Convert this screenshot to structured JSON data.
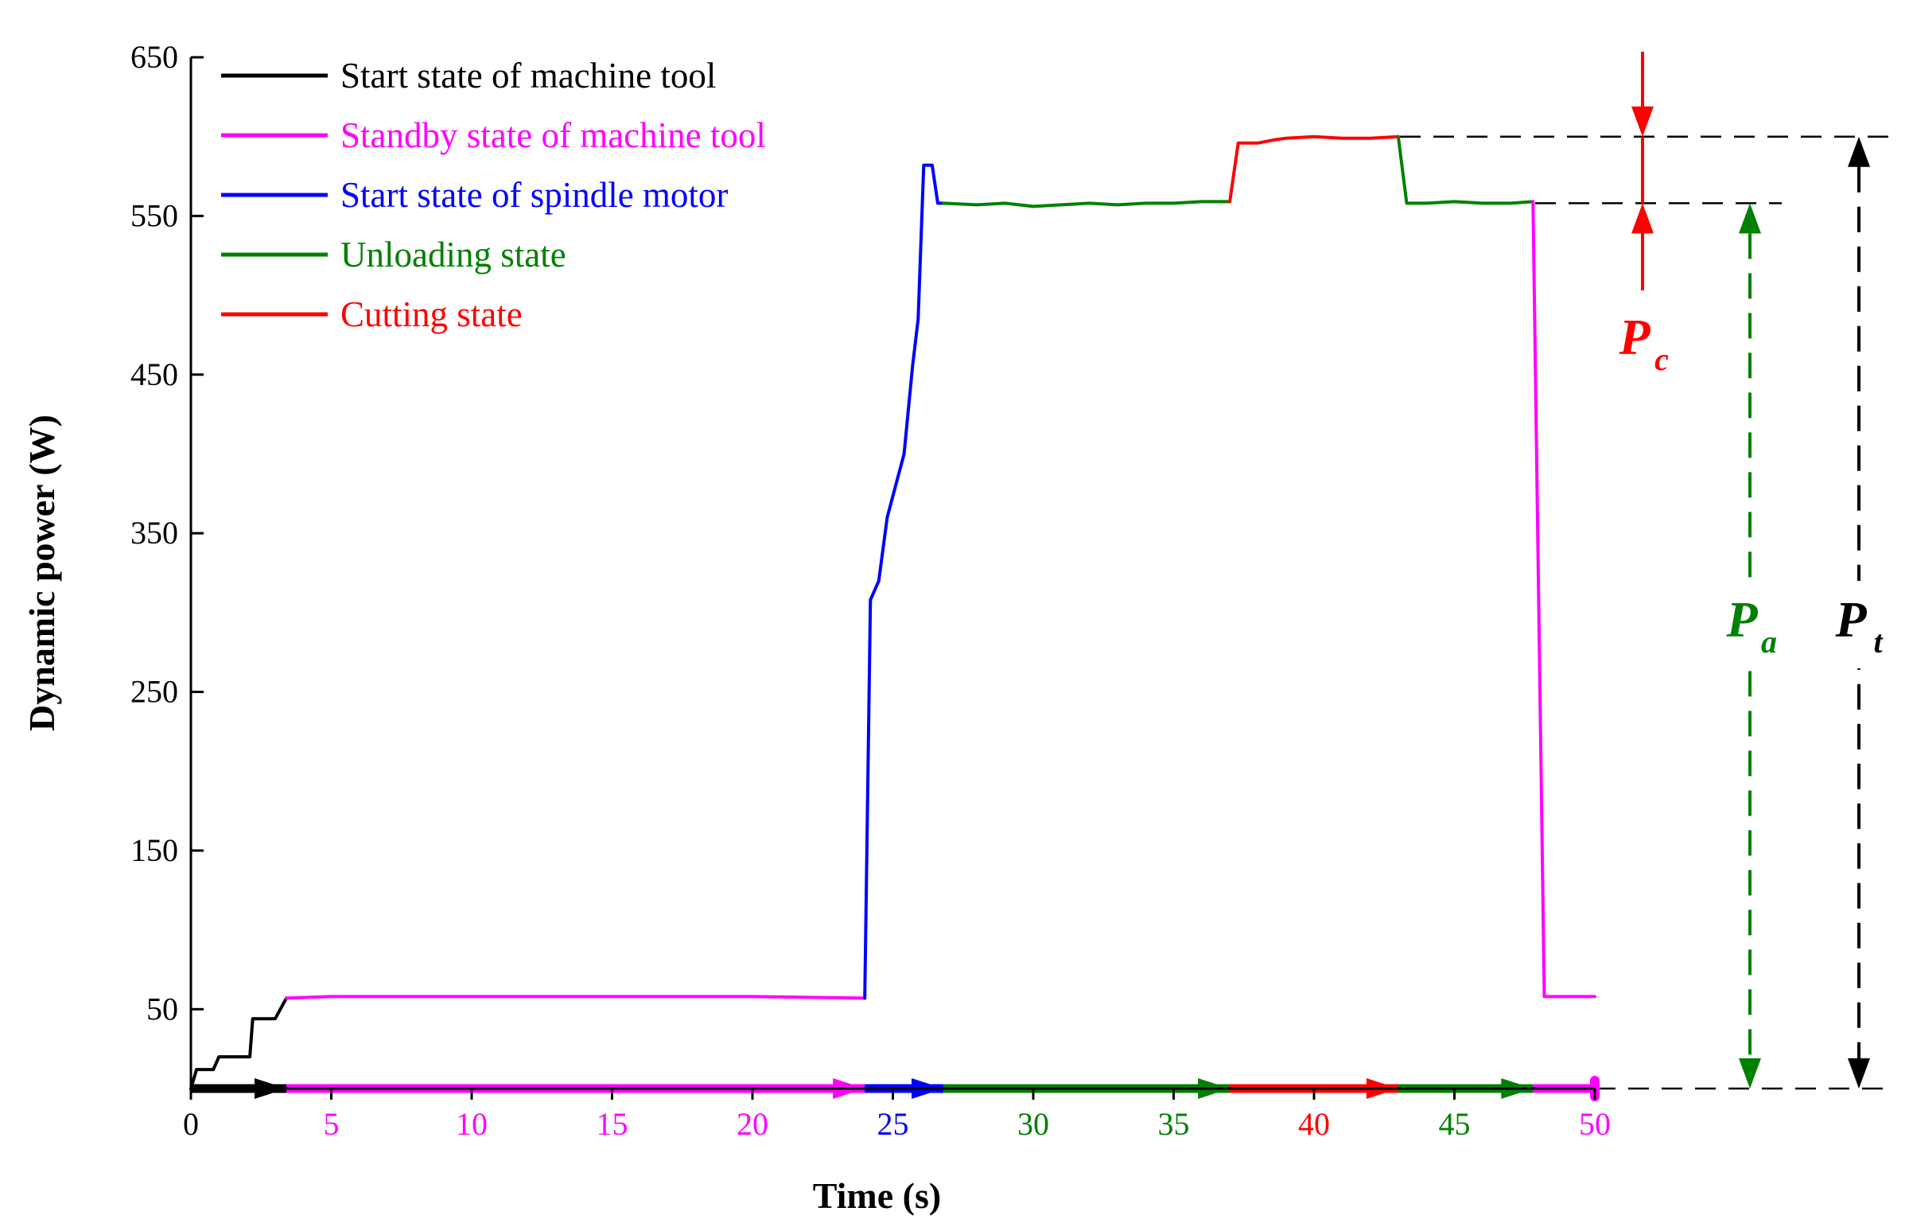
{
  "chart_data": {
    "type": "line",
    "title": "",
    "xlabel": "Time (s)",
    "ylabel": "Dynamic power (W)",
    "xlim": [
      0,
      50
    ],
    "ylim": [
      0,
      650
    ],
    "x_ticks": [
      {
        "label": "0",
        "value": 0,
        "color": "#000000"
      },
      {
        "label": "5",
        "value": 5,
        "color": "#ff00ff"
      },
      {
        "label": "10",
        "value": 10,
        "color": "#ff00ff"
      },
      {
        "label": "15",
        "value": 15,
        "color": "#ff00ff"
      },
      {
        "label": "20",
        "value": 20,
        "color": "#ff00ff"
      },
      {
        "label": "25",
        "value": 25,
        "color": "#0000ff"
      },
      {
        "label": "30",
        "value": 30,
        "color": "#008000"
      },
      {
        "label": "35",
        "value": 35,
        "color": "#008000"
      },
      {
        "label": "40",
        "value": 40,
        "color": "#ff0000"
      },
      {
        "label": "45",
        "value": 45,
        "color": "#008000"
      },
      {
        "label": "50",
        "value": 50,
        "color": "#ff00ff"
      }
    ],
    "y_ticks": [
      {
        "label": "50",
        "value": 50
      },
      {
        "label": "150",
        "value": 150
      },
      {
        "label": "250",
        "value": 250
      },
      {
        "label": "350",
        "value": 350
      },
      {
        "label": "450",
        "value": 450
      },
      {
        "label": "550",
        "value": 550
      },
      {
        "label": "650",
        "value": 650
      }
    ],
    "legend_position": "top-left",
    "series": [
      {
        "name": "Start state of machine tool",
        "color": "#000000",
        "x": [
          0,
          0.2,
          0.5,
          0.8,
          1.0,
          1.5,
          2.1,
          2.2,
          2.5,
          3.0,
          3.4
        ],
        "y": [
          0,
          12,
          12,
          12,
          20,
          20,
          20,
          44,
          44,
          44,
          57
        ]
      },
      {
        "name": "Standby state of machine tool",
        "color": "#ff00ff",
        "x": [
          3.4,
          5,
          10,
          15,
          20,
          24.0
        ],
        "y": [
          57,
          58,
          58,
          58,
          58,
          57
        ]
      },
      {
        "name": "Start state of spindle motor",
        "color": "#0000ff",
        "x": [
          24.0,
          24.2,
          24.5,
          24.8,
          25.1,
          25.4,
          25.7,
          25.9,
          26.1,
          26.4,
          26.6,
          26.8
        ],
        "y": [
          57,
          308,
          320,
          360,
          380,
          400,
          455,
          485,
          582,
          582,
          558,
          558
        ]
      },
      {
        "name": "Unloading state",
        "color": "#008000",
        "x": [
          26.8,
          28,
          29,
          30,
          31,
          32,
          33,
          34,
          35,
          36,
          37.0
        ],
        "y": [
          558,
          557,
          558,
          556,
          557,
          558,
          557,
          558,
          558,
          559,
          559
        ]
      },
      {
        "name": "Cutting state",
        "color": "#ff0000",
        "x": [
          37.0,
          37.3,
          38,
          38.6,
          39,
          40,
          41,
          42,
          43.0
        ],
        "y": [
          559,
          596,
          596,
          598,
          599,
          600,
          599,
          599,
          600
        ]
      },
      {
        "name": "",
        "color": "#008000",
        "x": [
          43.0,
          43.3,
          44,
          45,
          46,
          47,
          47.8
        ],
        "y": [
          600,
          558,
          558,
          559,
          558,
          558,
          559
        ]
      },
      {
        "name": "",
        "color": "#ff00ff",
        "x": [
          47.8,
          48.2,
          49,
          50
        ],
        "y": [
          559,
          58,
          58,
          58
        ]
      }
    ],
    "timeline": [
      {
        "from": 0,
        "to": 3.4,
        "color": "#000000"
      },
      {
        "from": 3.4,
        "to": 24.0,
        "color": "#ff00ff"
      },
      {
        "from": 24.0,
        "to": 26.8,
        "color": "#0000ff"
      },
      {
        "from": 26.8,
        "to": 37.0,
        "color": "#008000"
      },
      {
        "from": 37.0,
        "to": 43.0,
        "color": "#ff0000"
      },
      {
        "from": 43.0,
        "to": 47.8,
        "color": "#008000"
      },
      {
        "from": 47.8,
        "to": 50,
        "color": "#ff00ff"
      }
    ],
    "reference_lines": [
      {
        "y": 600,
        "dashed": true
      },
      {
        "y": 558,
        "dashed": true
      },
      {
        "y": 0,
        "dashed": true
      }
    ],
    "annotations": [
      {
        "symbol": "P",
        "subscript": "c",
        "color": "#ff0000",
        "from": 558,
        "to": 600
      },
      {
        "symbol": "P",
        "subscript": "a",
        "color": "#008000",
        "from": 0,
        "to": 558
      },
      {
        "symbol": "P",
        "subscript": "t",
        "color": "#000000",
        "from": 0,
        "to": 600
      }
    ]
  }
}
